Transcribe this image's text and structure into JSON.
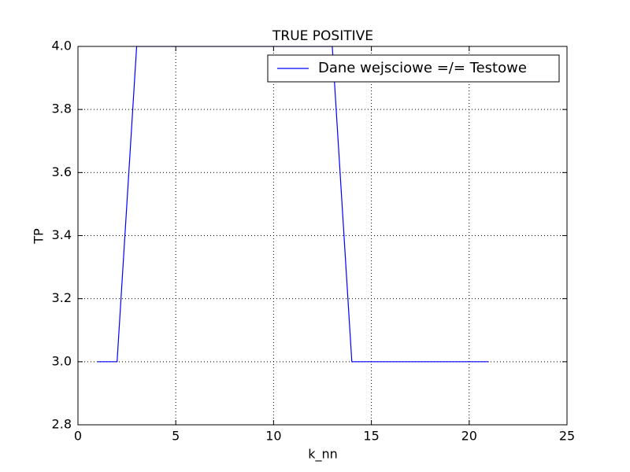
{
  "chart_data": {
    "type": "line",
    "title": "TRUE POSITIVE",
    "xlabel": "k_nn",
    "ylabel": "TP",
    "x": [
      1,
      2,
      3,
      4,
      5,
      6,
      7,
      8,
      9,
      10,
      11,
      12,
      13,
      14,
      15,
      16,
      17,
      18,
      19,
      20,
      21
    ],
    "series": [
      {
        "name": "Dane wejsciowe =/= Testowe",
        "color": "#0000ff",
        "values": [
          3,
          3,
          4,
          4,
          4,
          4,
          4,
          4,
          4,
          4,
          4,
          4,
          4,
          3,
          3,
          3,
          3,
          3,
          3,
          3,
          3
        ]
      }
    ],
    "xlim": [
      0,
      25
    ],
    "xticks": [
      0,
      5,
      10,
      15,
      20,
      25
    ],
    "ylim": [
      2.8,
      4.0
    ],
    "yticks": [
      2.8,
      {
        "value": 3.0,
        "label": "3.0"
      },
      3.2,
      3.4,
      3.6,
      3.8,
      {
        "value": 4.0,
        "label": "4.0"
      }
    ],
    "grid": true,
    "legend": "upper-right"
  }
}
